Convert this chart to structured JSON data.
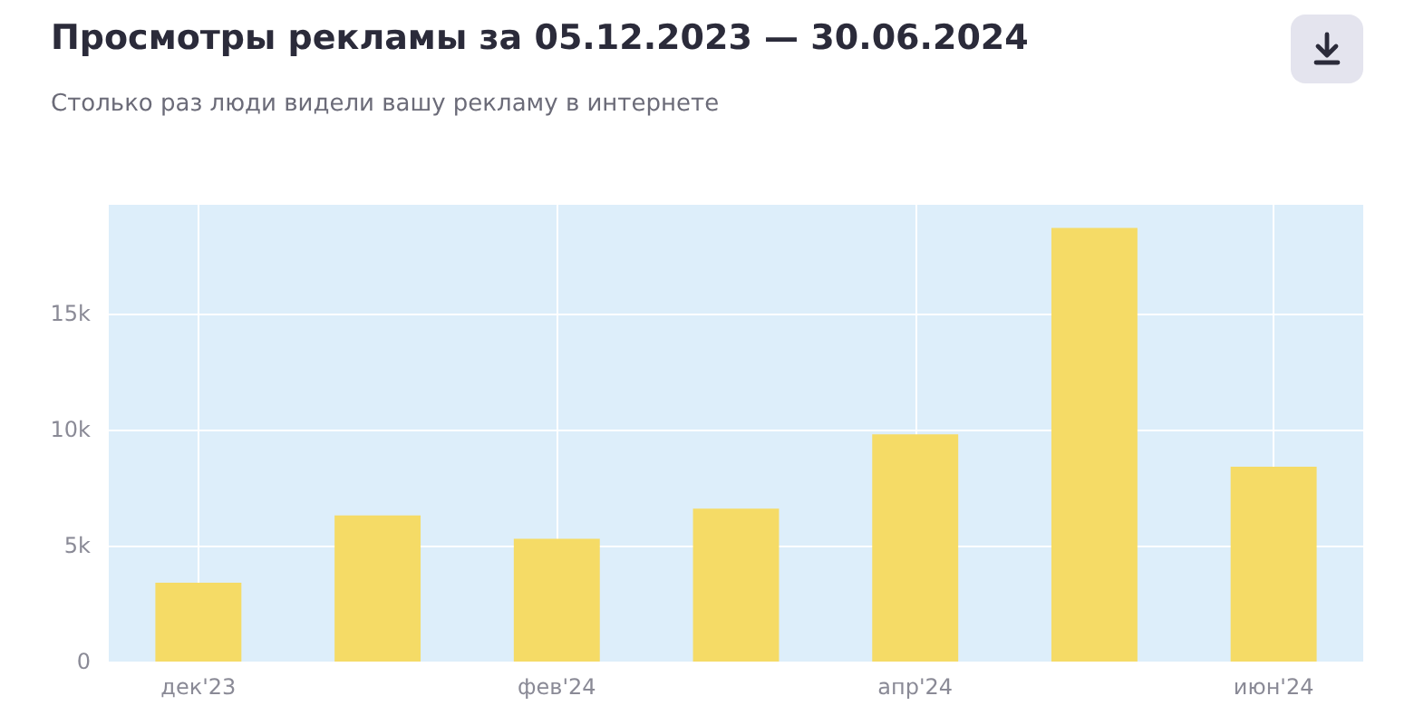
{
  "chart_data": {
    "type": "bar",
    "title": "Просмотры рекламы за 05.12.2023 — 30.06.2024",
    "subtitle": "Столько раз люди видели вашу рекламу в интернете",
    "categories": [
      "дек'23",
      null,
      "фев'24",
      null,
      "апр'24",
      null,
      "июн'24"
    ],
    "values": [
      3400,
      6300,
      5300,
      6600,
      9800,
      18700,
      8400
    ],
    "color": "#f5db66",
    "ylim": [
      0,
      19700
    ],
    "yticks": [
      0,
      {
        "value": 5000,
        "label": "5k"
      },
      {
        "value": 10000,
        "label": "10k"
      },
      {
        "value": 15000,
        "label": "15k"
      }
    ],
    "grid": true
  }
}
